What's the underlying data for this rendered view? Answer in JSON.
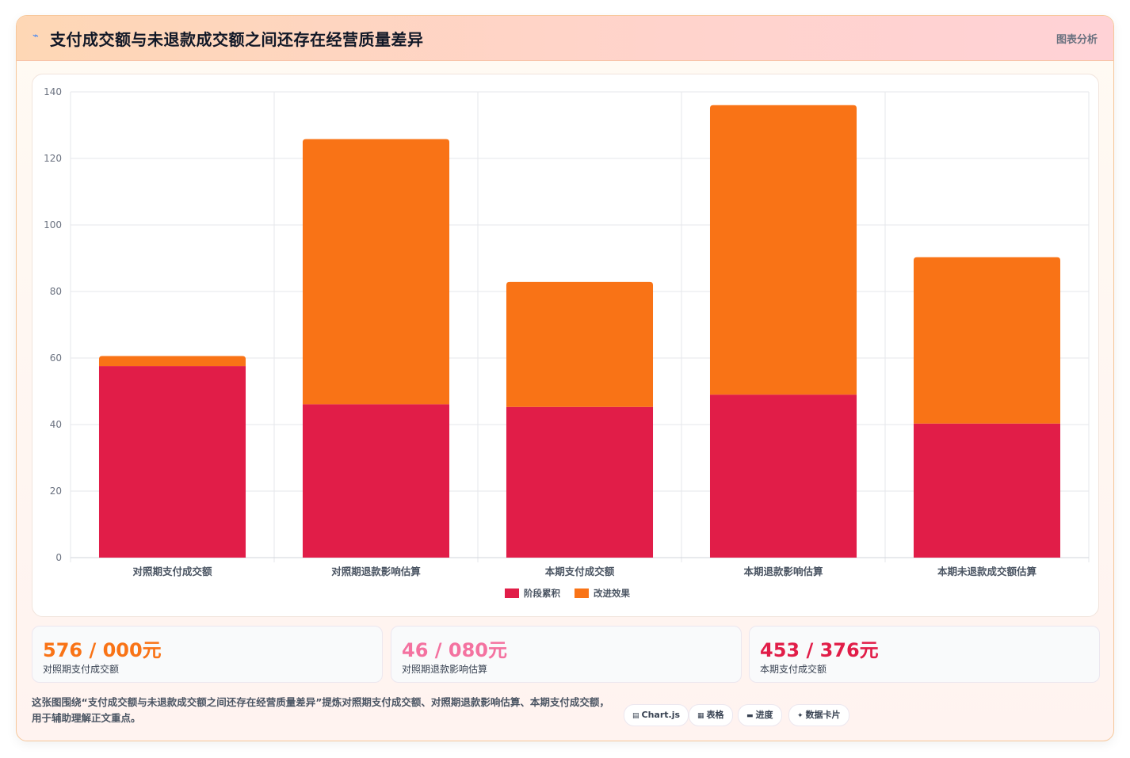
{
  "header": {
    "icon": "chart-line-icon",
    "title": "支付成交额与未退款成交额之间还存在经营质量差异",
    "right_label": "图表分析"
  },
  "chart_data": {
    "type": "bar",
    "stacked": true,
    "categories": [
      "对照期支付成交额",
      "对照期退款影响估算",
      "本期支付成交额",
      "本期退款影响估算",
      "本期未退款成交额估算"
    ],
    "series": [
      {
        "name": "阶段累积",
        "color": "#e11d48",
        "values": [
          57.6,
          46.1,
          45.3,
          49.0,
          40.3
        ]
      },
      {
        "name": "改进效果",
        "color": "#f97316",
        "values": [
          3.0,
          79.7,
          37.6,
          87.0,
          50.0
        ]
      }
    ],
    "yticks": [
      0,
      20,
      40,
      60,
      80,
      100,
      120,
      140
    ],
    "ylim": [
      0,
      140
    ],
    "grid": true,
    "legend_position": "bottom"
  },
  "stats": [
    {
      "value": "576 / 000元",
      "label": "对照期支付成交额",
      "color": "#f97316"
    },
    {
      "value": "46 / 080元",
      "label": "对照期退款影响估算",
      "color": "#f472a0"
    },
    {
      "value": "453 / 376元",
      "label": "本期支付成交额",
      "color": "#e11d48"
    }
  ],
  "footer": {
    "description": "这张图围绕“支付成交额与未退款成交额之间还存在经营质量差异”提炼对照期支付成交额、对照期退款影响估算、本期支付成交额，用于辅助理解正文重点。",
    "chips": [
      {
        "icon": "chart-icon",
        "glyph": "▤",
        "label": "Chart.js"
      },
      {
        "icon": "table-icon",
        "glyph": "▦",
        "label": "表格"
      },
      {
        "icon": "progress-icon",
        "glyph": "▬",
        "label": "进度"
      },
      {
        "icon": "sparkle-icon",
        "glyph": "✦",
        "label": "数据卡片"
      }
    ]
  }
}
